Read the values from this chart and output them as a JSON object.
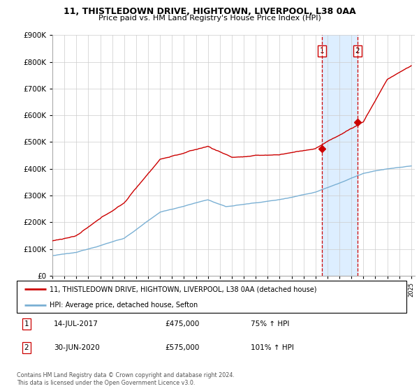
{
  "title": "11, THISTLEDOWN DRIVE, HIGHTOWN, LIVERPOOL, L38 0AA",
  "subtitle": "Price paid vs. HM Land Registry's House Price Index (HPI)",
  "legend_property": "11, THISTLEDOWN DRIVE, HIGHTOWN, LIVERPOOL, L38 0AA (detached house)",
  "legend_hpi": "HPI: Average price, detached house, Sefton",
  "sale1_date": "14-JUL-2017",
  "sale1_price": "£475,000",
  "sale1_pct": "75% ↑ HPI",
  "sale1_year": 2017.54,
  "sale1_value": 475000,
  "sale2_date": "30-JUN-2020",
  "sale2_price": "£575,000",
  "sale2_pct": "101% ↑ HPI",
  "sale2_year": 2020.5,
  "sale2_value": 575000,
  "property_color": "#cc0000",
  "hpi_color": "#7ab0d4",
  "shade_color": "#ddeeff",
  "ylim": [
    0,
    900000
  ],
  "yticks": [
    0,
    100000,
    200000,
    300000,
    400000,
    500000,
    600000,
    700000,
    800000,
    900000
  ],
  "footer": "Contains HM Land Registry data © Crown copyright and database right 2024.\nThis data is licensed under the Open Government Licence v3.0.",
  "background_color": "#ffffff"
}
